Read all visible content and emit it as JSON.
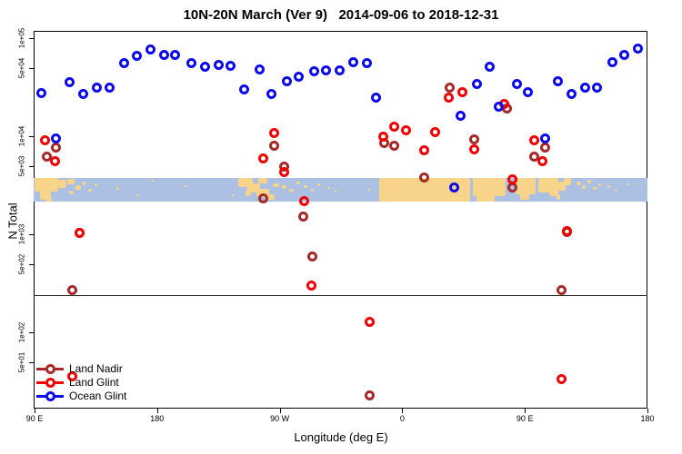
{
  "title": "10N-20N March (Ver 9)   2014-09-06 to 2018-12-31",
  "axes": {
    "x_label": "Longitude (deg E)",
    "x_ticks": [
      {
        "lon": 90,
        "label": "90 E"
      },
      {
        "lon": 180,
        "label": "180"
      },
      {
        "lon": 270,
        "label": "90 W"
      },
      {
        "lon": 360,
        "label": "0"
      },
      {
        "lon": 450,
        "label": "90 E"
      },
      {
        "lon": 540,
        "label": "180"
      }
    ],
    "y_label": "N Total",
    "y_ticks": [
      {
        "value": 100000,
        "label": "1e+05"
      },
      {
        "value": 50000,
        "label": "5e+04"
      },
      {
        "value": 10000,
        "label": "1e+04"
      },
      {
        "value": 5000,
        "label": "5e+03"
      },
      {
        "value": 1000,
        "label": "1e+03"
      },
      {
        "value": 500,
        "label": "5e+02"
      },
      {
        "value": 100,
        "label": "1e+02"
      },
      {
        "value": 50,
        "label": "5e+01"
      }
    ]
  },
  "legend": {
    "items": [
      {
        "label": "Land Nadir",
        "color": "#a52a2a"
      },
      {
        "label": "Land Glint",
        "color": "#f40000"
      },
      {
        "label": "Ocean Glint",
        "color": "#0b0bee"
      }
    ]
  },
  "chart_data": {
    "type": "scatter",
    "title": "10N-20N March (Ver 9)   2014-09-06 to 2018-12-31",
    "xlabel": "Longitude (deg E)",
    "ylabel": "N Total",
    "x_axis_note": "longitude axis starts at 90E and wraps eastward through 180, 90W, 0, 90E to 180 (internal span 90..540 deg)",
    "x_range_deg": [
      90,
      540
    ],
    "y_scale": "log10",
    "y_range": [
      20,
      120000
    ],
    "reference_line_y": 240,
    "map_strip_band_y": [
      2150,
      3750
    ],
    "legend_position": "bottom-left",
    "series": [
      {
        "name": "Land Nadir",
        "color": "#a52a2a",
        "points": [
          [
            106,
            7580
          ],
          [
            99,
            6250
          ],
          [
            266,
            7910
          ],
          [
            273,
            4940
          ],
          [
            258,
            2340
          ],
          [
            347,
            8600
          ],
          [
            354,
            8070
          ],
          [
            376,
            3830
          ],
          [
            395,
            31000
          ],
          [
            413,
            9380
          ],
          [
            437,
            19000
          ],
          [
            441,
            3030
          ],
          [
            457,
            6250
          ],
          [
            465,
            7580
          ],
          [
            287,
            1500
          ],
          [
            294,
            587
          ],
          [
            118,
            272
          ],
          [
            477,
            272
          ],
          [
            336,
            22.5
          ],
          [
            123,
            1030
          ],
          [
            481,
            1050
          ]
        ]
      },
      {
        "name": "Land Glint",
        "color": "#f40000",
        "points": [
          [
            98,
            9180
          ],
          [
            105,
            5620
          ],
          [
            266,
            10700
          ],
          [
            258,
            5870
          ],
          [
            273,
            4270
          ],
          [
            288,
            2200
          ],
          [
            346,
            10000
          ],
          [
            354,
            12400
          ],
          [
            363,
            11400
          ],
          [
            384,
            10900
          ],
          [
            376,
            7110
          ],
          [
            394,
            25000
          ],
          [
            404,
            28400
          ],
          [
            413,
            7410
          ],
          [
            435,
            21100
          ],
          [
            457,
            9180
          ],
          [
            463,
            5510
          ],
          [
            441,
            3600
          ],
          [
            123,
            1040
          ],
          [
            481,
            1070
          ],
          [
            293,
            297
          ],
          [
            336,
            129
          ],
          [
            477,
            33.7
          ],
          [
            118,
            35.2
          ]
        ]
      },
      {
        "name": "Ocean Glint",
        "color": "#0b0bee",
        "points": [
          [
            95,
            27800
          ],
          [
            116,
            35200
          ],
          [
            126,
            27200
          ],
          [
            136,
            31600
          ],
          [
            145,
            31600
          ],
          [
            156,
            56200
          ],
          [
            165,
            65300
          ],
          [
            175,
            75900
          ],
          [
            185,
            68100
          ],
          [
            193,
            66700
          ],
          [
            205,
            55100
          ],
          [
            215,
            51600
          ],
          [
            225,
            53800
          ],
          [
            234,
            52700
          ],
          [
            244,
            30300
          ],
          [
            255,
            48400
          ],
          [
            264,
            27200
          ],
          [
            275,
            36000
          ],
          [
            284,
            40000
          ],
          [
            295,
            46400
          ],
          [
            304,
            47400
          ],
          [
            314,
            47400
          ],
          [
            324,
            57400
          ],
          [
            334,
            56200
          ],
          [
            341,
            25000
          ],
          [
            403,
            16000
          ],
          [
            398,
            3030
          ],
          [
            415,
            34400
          ],
          [
            424,
            51600
          ],
          [
            431,
            19800
          ],
          [
            444,
            34400
          ],
          [
            452,
            28400
          ],
          [
            465,
            9570
          ],
          [
            474,
            36000
          ],
          [
            484,
            26700
          ],
          [
            494,
            31000
          ],
          [
            503,
            31600
          ],
          [
            514,
            57400
          ],
          [
            523,
            66700
          ],
          [
            533,
            77700
          ],
          [
            106,
            9570
          ]
        ]
      }
    ]
  },
  "map_strip": {
    "ocean_color": "#abc0e2",
    "land_color": "#f7d489",
    "land_blobs": [
      [
        38,
        0,
        26,
        15
      ],
      [
        44,
        13,
        12,
        11
      ],
      [
        50,
        22,
        7,
        4
      ],
      [
        64,
        2,
        9,
        9
      ],
      [
        74,
        1,
        8,
        6
      ],
      [
        83,
        8,
        6,
        5
      ],
      [
        76,
        14,
        5,
        4
      ],
      [
        90,
        4,
        4,
        4
      ],
      [
        97,
        12,
        4,
        3
      ],
      [
        104,
        6,
        3,
        3
      ],
      [
        128,
        10,
        3,
        3
      ],
      [
        150,
        18,
        3,
        2
      ],
      [
        166,
        2,
        3,
        2
      ],
      [
        203,
        8,
        3,
        2
      ],
      [
        255,
        18,
        3,
        2
      ],
      [
        262,
        0,
        16,
        10
      ],
      [
        272,
        6,
        14,
        10
      ],
      [
        282,
        12,
        14,
        9
      ],
      [
        292,
        18,
        10,
        6
      ],
      [
        270,
        14,
        6,
        6
      ],
      [
        284,
        0,
        10,
        6
      ],
      [
        300,
        6,
        7,
        4
      ],
      [
        310,
        8,
        5,
        4
      ],
      [
        318,
        12,
        5,
        3
      ],
      [
        326,
        4,
        4,
        3
      ],
      [
        334,
        8,
        4,
        3
      ],
      [
        342,
        12,
        3,
        3
      ],
      [
        349,
        6,
        3,
        3
      ],
      [
        360,
        10,
        3,
        2
      ],
      [
        368,
        14,
        3,
        2
      ],
      [
        404,
        12,
        3,
        2
      ],
      [
        417,
        0,
        100,
        26
      ],
      [
        520,
        0,
        36,
        20
      ],
      [
        524,
        18,
        20,
        8
      ],
      [
        567,
        0,
        22,
        18
      ],
      [
        572,
        16,
        10,
        8
      ],
      [
        592,
        0,
        14,
        16
      ],
      [
        604,
        0,
        10,
        20
      ],
      [
        614,
        4,
        8,
        10
      ],
      [
        620,
        0,
        8,
        8
      ],
      [
        612,
        18,
        4,
        6
      ],
      [
        634,
        4,
        5,
        4
      ],
      [
        640,
        8,
        4,
        4
      ],
      [
        646,
        2,
        4,
        4
      ],
      [
        652,
        10,
        4,
        3
      ],
      [
        658,
        6,
        3,
        3
      ],
      [
        668,
        8,
        3,
        3
      ],
      [
        676,
        12,
        3,
        2
      ],
      [
        690,
        6,
        3,
        2
      ]
    ]
  }
}
